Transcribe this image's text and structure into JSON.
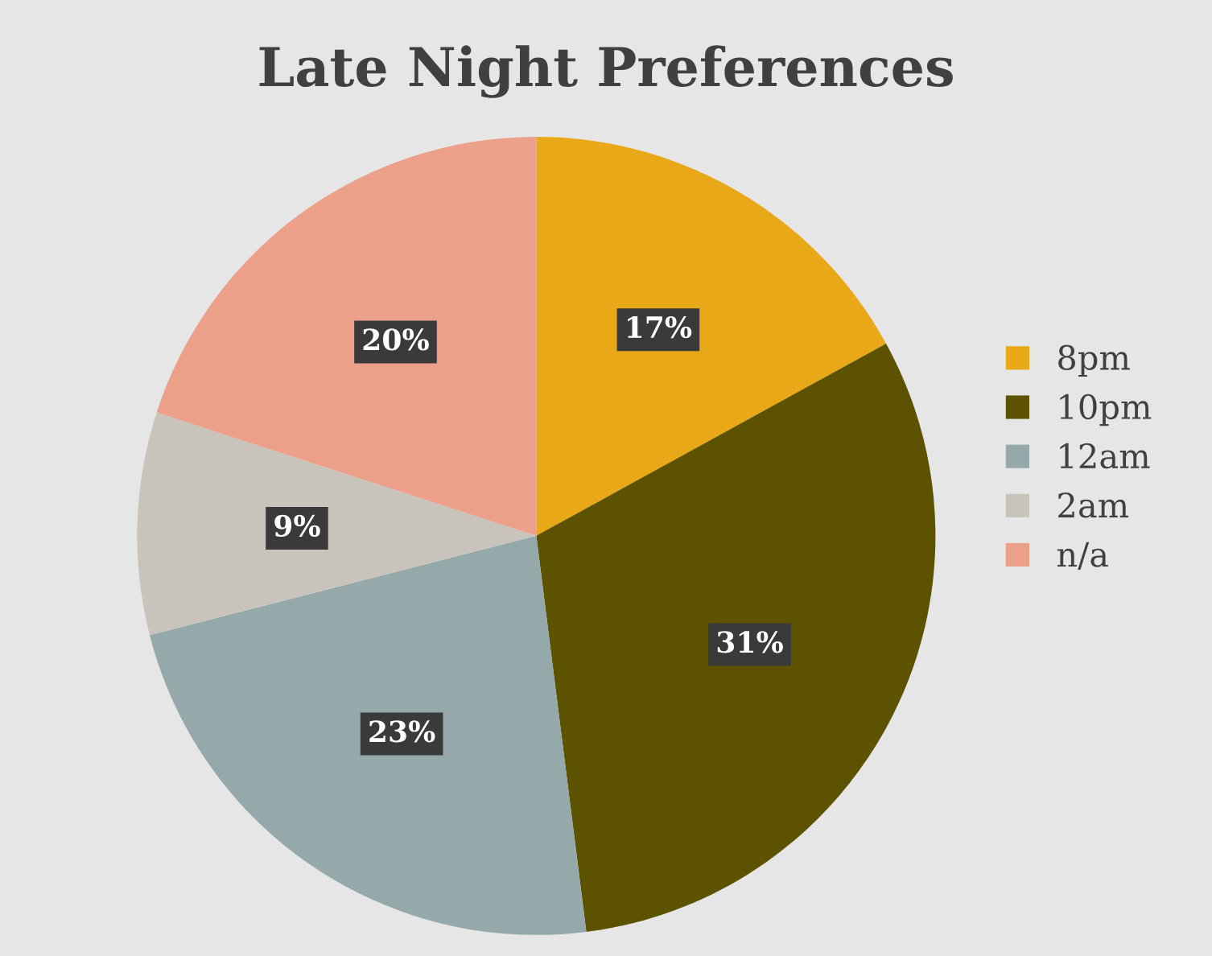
{
  "chart_data": {
    "type": "pie",
    "title": "Late Night Preferences",
    "categories": [
      "8pm",
      "10pm",
      "12am",
      "2am",
      "n/a"
    ],
    "values": [
      17,
      31,
      23,
      9,
      20
    ],
    "value_labels": [
      "17%",
      "31%",
      "23%",
      "9%",
      "20%"
    ],
    "colors": [
      "#e8a818",
      "#5c5200",
      "#95a8aa",
      "#c8c4bc",
      "#eca08a"
    ],
    "legend": "right"
  }
}
